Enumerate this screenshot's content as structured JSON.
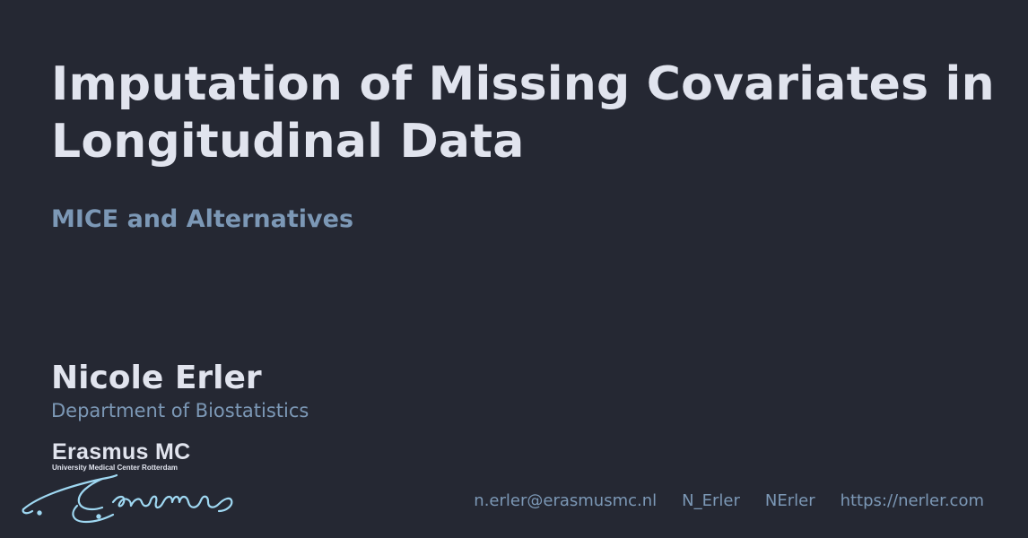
{
  "slide": {
    "title": "Imputation of Missing Covariates in Longitudinal Data",
    "subtitle": "MICE and Alternatives",
    "author": "Nicole Erler",
    "department": "Department of Biostatistics"
  },
  "logo": {
    "name": "Erasmus MC",
    "tagline": "University Medical Center Rotterdam",
    "icon": "erasmus-signature-logo"
  },
  "contacts": {
    "email": "n.erler@erasmusmc.nl",
    "twitter": "N_Erler",
    "github": "NErler",
    "website": "https://nerler.com"
  },
  "colors": {
    "background": "#252833",
    "text": "#e1e4ee",
    "accent": "#7c98b6",
    "logo_signature": "#9fd8f2"
  }
}
